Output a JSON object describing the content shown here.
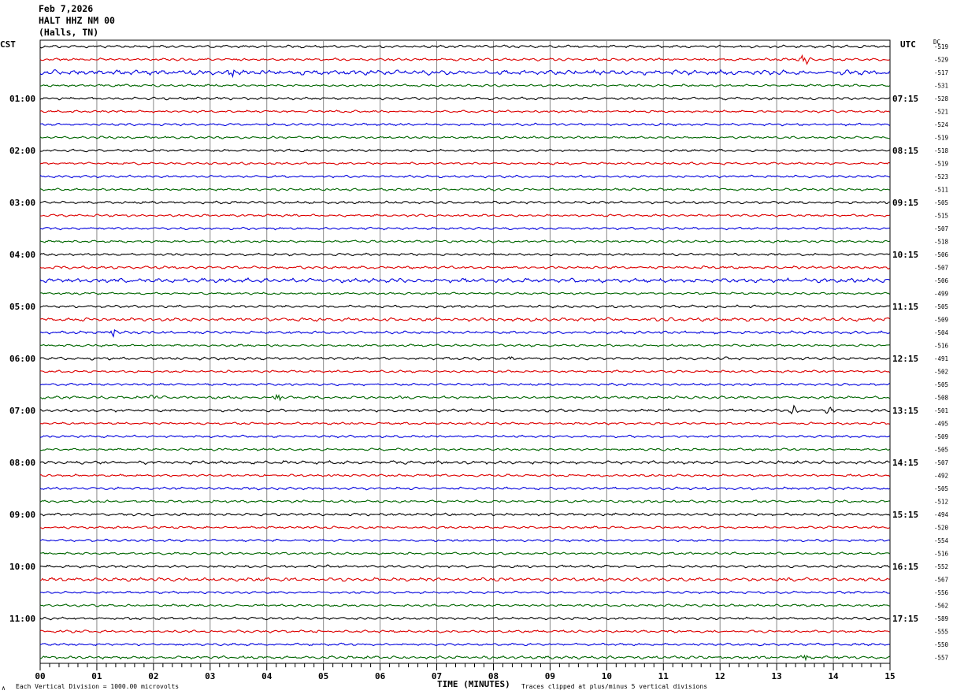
{
  "header": {
    "date": "Feb 7,2026",
    "station": "HALT HHZ NM 00",
    "location": "(Halls, TN)"
  },
  "left_zone": "CST",
  "right_zone": "UTC",
  "dc_label": "DC",
  "footer": {
    "scale": "Each Vertical Division = 1000.00 microvolts",
    "clip": "Traces clipped at plus/minus 5 vertical divisions",
    "corner_mark": "∧"
  },
  "chart_data": {
    "type": "line",
    "title": "",
    "xlabel": "TIME (MINUTES)",
    "xlim": [
      0,
      15
    ],
    "x_ticks": [
      "00",
      "01",
      "02",
      "03",
      "04",
      "05",
      "06",
      "07",
      "08",
      "09",
      "10",
      "11",
      "12",
      "13",
      "14",
      "15"
    ],
    "grid": true,
    "trace_colors": [
      "#000000",
      "#dd0000",
      "#0000dd",
      "#006600"
    ],
    "left_hour_labels": [
      "01:00",
      "02:00",
      "03:00",
      "04:00",
      "05:00",
      "06:00",
      "07:00",
      "08:00",
      "09:00",
      "10:00",
      "11:00"
    ],
    "right_hour_labels": [
      "07:15",
      "08:15",
      "09:15",
      "10:15",
      "11:15",
      "12:15",
      "13:15",
      "14:15",
      "15:15",
      "16:15",
      "17:15"
    ],
    "dc_offsets": [
      -519,
      -529,
      -517,
      -531,
      -528,
      -521,
      -524,
      -519,
      -518,
      -519,
      -523,
      -511,
      -505,
      -515,
      -507,
      -518,
      -506,
      -507,
      -506,
      -499,
      -505,
      -509,
      -504,
      -516,
      -491,
      -502,
      -505,
      -508,
      -501,
      -495,
      -509,
      -505,
      -507,
      -492,
      -505,
      -512,
      -494,
      -520,
      -554,
      -516,
      -552,
      -567,
      -556,
      -562,
      -589,
      -555,
      -550,
      -557
    ],
    "trace_amplitudes": [
      1.2,
      1.2,
      2.2,
      1.1,
      1.2,
      1.1,
      1.1,
      1.1,
      1.1,
      1.1,
      1.1,
      1.1,
      1.2,
      1.1,
      1.1,
      1.1,
      1.1,
      1.3,
      1.9,
      1.0,
      1.2,
      1.6,
      1.3,
      1.1,
      1.3,
      1.1,
      1.1,
      1.3,
      1.3,
      1.1,
      1.1,
      1.1,
      1.5,
      1.1,
      1.2,
      1.2,
      1.2,
      1.1,
      1.1,
      1.1,
      1.2,
      1.6,
      1.1,
      1.1,
      1.2,
      1.2,
      1.1,
      1.4
    ],
    "events": [
      {
        "trace": 1,
        "minute": 13.5,
        "amplitude": 9
      },
      {
        "trace": 2,
        "minute": 3.4,
        "amplitude": 4
      },
      {
        "trace": 22,
        "minute": 1.3,
        "amplitude": 5
      },
      {
        "trace": 24,
        "minute": 8.3,
        "amplitude": 3
      },
      {
        "trace": 27,
        "minute": 2.0,
        "amplitude": 6
      },
      {
        "trace": 27,
        "minute": 4.2,
        "amplitude": 6
      },
      {
        "trace": 28,
        "minute": 13.3,
        "amplitude": 6
      },
      {
        "trace": 28,
        "minute": 13.95,
        "amplitude": 5
      },
      {
        "trace": 32,
        "minute": 4.5,
        "amplitude": 3
      },
      {
        "trace": 47,
        "minute": 13.5,
        "amplitude": 3
      }
    ]
  }
}
